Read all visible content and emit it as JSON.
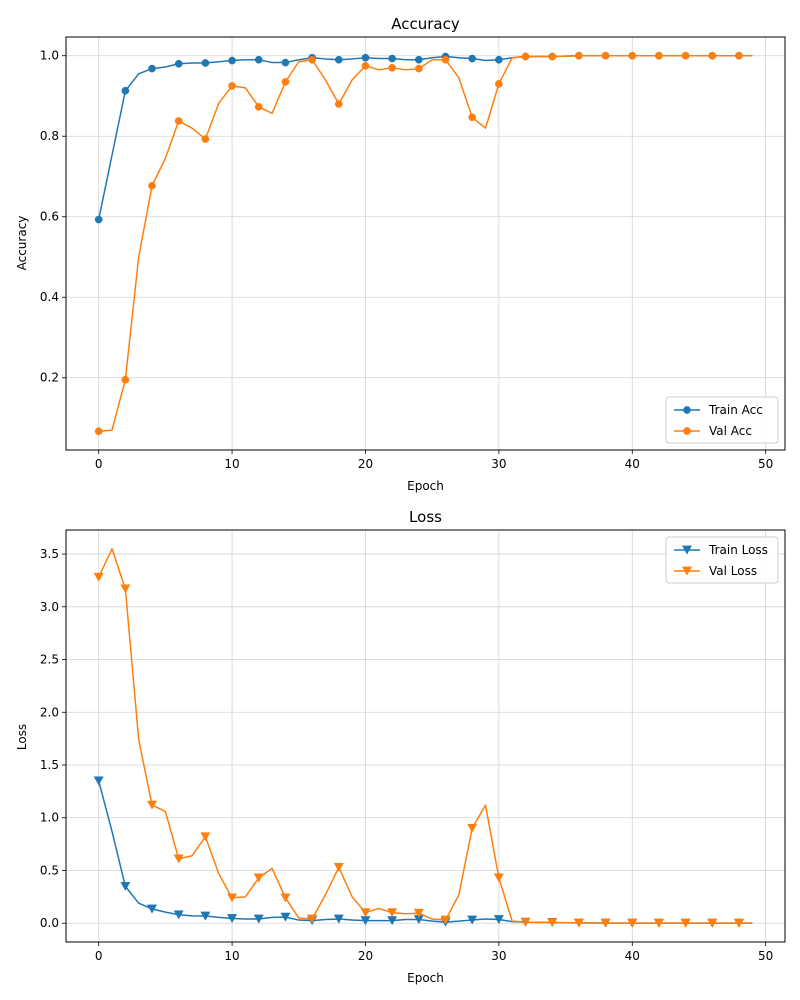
{
  "chart_data": [
    {
      "type": "line",
      "title": "Accuracy",
      "xlabel": "Epoch",
      "ylabel": "Accuracy",
      "xlim": [
        -2.45,
        51.45
      ],
      "ylim": [
        0.0205,
        1.0465
      ],
      "xticks": [
        0,
        10,
        20,
        30,
        40,
        50
      ],
      "yticks": [
        0.2,
        0.4,
        0.6,
        0.8,
        1.0
      ],
      "yticks_labels": [
        "0.2",
        "0.4",
        "0.6",
        "0.8",
        "1.0"
      ],
      "grid": true,
      "legend_position": "lower-right",
      "marker": "circle",
      "marker_every": 2,
      "series": [
        {
          "name": "Train Acc",
          "color": "#1f77b4",
          "values": [
            0.593,
            0.753,
            0.913,
            0.955,
            0.968,
            0.972,
            0.98,
            0.982,
            0.982,
            0.985,
            0.988,
            0.99,
            0.99,
            0.983,
            0.983,
            0.99,
            0.995,
            0.992,
            0.99,
            0.992,
            0.995,
            0.993,
            0.993,
            0.99,
            0.99,
            0.995,
            0.998,
            0.995,
            0.993,
            0.988,
            0.99,
            0.995,
            0.998,
            0.998,
            0.998,
            0.999,
            1.0,
            1.0,
            1.0,
            1.0,
            1.0,
            1.0,
            1.0,
            1.0,
            1.0,
            1.0,
            1.0,
            1.0,
            1.0,
            1.0
          ]
        },
        {
          "name": "Val Acc",
          "color": "#ff7f0e",
          "values": [
            0.067,
            0.07,
            0.195,
            0.5,
            0.677,
            0.745,
            0.838,
            0.82,
            0.793,
            0.882,
            0.925,
            0.92,
            0.873,
            0.857,
            0.935,
            0.985,
            0.99,
            0.94,
            0.88,
            0.94,
            0.975,
            0.965,
            0.97,
            0.965,
            0.968,
            0.99,
            0.99,
            0.945,
            0.847,
            0.82,
            0.93,
            0.995,
            0.998,
            0.998,
            0.998,
            0.999,
            1.0,
            1.0,
            1.0,
            1.0,
            1.0,
            1.0,
            1.0,
            1.0,
            1.0,
            1.0,
            1.0,
            1.0,
            1.0,
            1.0
          ]
        }
      ]
    },
    {
      "type": "line",
      "title": "Loss",
      "xlabel": "Epoch",
      "ylabel": "Loss",
      "xlim": [
        -2.45,
        51.45
      ],
      "ylim": [
        -0.178,
        3.728
      ],
      "xticks": [
        0,
        10,
        20,
        30,
        40,
        50
      ],
      "yticks": [
        0.0,
        0.5,
        1.0,
        1.5,
        2.0,
        2.5,
        3.0,
        3.5
      ],
      "yticks_labels": [
        "0.0",
        "0.5",
        "1.0",
        "1.5",
        "2.0",
        "2.5",
        "3.0",
        "3.5"
      ],
      "grid": true,
      "legend_position": "top-right",
      "marker": "triangle-down",
      "marker_every": 2,
      "series": [
        {
          "name": "Train Loss",
          "color": "#1f77b4",
          "values": [
            1.35,
            0.87,
            0.35,
            0.19,
            0.135,
            0.105,
            0.08,
            0.07,
            0.068,
            0.055,
            0.045,
            0.04,
            0.04,
            0.055,
            0.058,
            0.03,
            0.025,
            0.035,
            0.04,
            0.03,
            0.025,
            0.025,
            0.025,
            0.035,
            0.035,
            0.02,
            0.01,
            0.02,
            0.03,
            0.04,
            0.035,
            0.015,
            0.01,
            0.008,
            0.008,
            0.005,
            0.003,
            0.002,
            0.002,
            0.001,
            0.001,
            0.001,
            0.001,
            0.001,
            0.001,
            0.001,
            0.001,
            0.001,
            0.001,
            0.001
          ]
        },
        {
          "name": "Val Loss",
          "color": "#ff7f0e",
          "values": [
            3.28,
            3.55,
            3.17,
            1.74,
            1.12,
            1.06,
            0.61,
            0.64,
            0.82,
            0.47,
            0.24,
            0.25,
            0.43,
            0.52,
            0.24,
            0.05,
            0.04,
            0.27,
            0.53,
            0.25,
            0.1,
            0.14,
            0.1,
            0.09,
            0.095,
            0.04,
            0.03,
            0.27,
            0.9,
            1.12,
            0.43,
            0.02,
            0.01,
            0.008,
            0.005,
            0.005,
            0.003,
            0.002,
            0.002,
            0.001,
            0.001,
            0.001,
            0.001,
            0.001,
            0.001,
            0.001,
            0.001,
            0.001,
            0.001,
            0.001
          ]
        }
      ]
    }
  ]
}
